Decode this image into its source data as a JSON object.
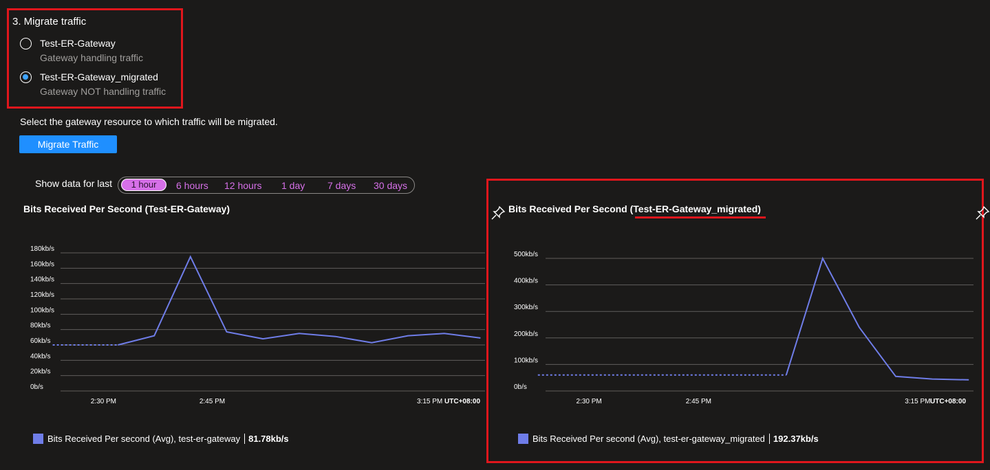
{
  "section": {
    "title": "3. Migrate traffic",
    "options": [
      {
        "label": "Test-ER-Gateway",
        "description": "Gateway handling traffic",
        "selected": false
      },
      {
        "label": "Test-ER-Gateway_migrated",
        "description": "Gateway NOT handling traffic",
        "selected": true
      }
    ],
    "helper_text": "Select the gateway resource to which traffic will be migrated.",
    "button_label": "Migrate Traffic"
  },
  "time_range": {
    "label": "Show data for last",
    "options": [
      "1 hour",
      "6 hours",
      "12 hours",
      "1 day",
      "7 days",
      "30 days"
    ],
    "selected": "1 hour"
  },
  "colors": {
    "accent": "#1f8fff",
    "series": "#6f7de8",
    "highlight": "#e0161c",
    "time_option": "#d670e8"
  },
  "icons": {
    "pin": "pin-icon"
  },
  "chart_data": [
    {
      "type": "line",
      "title": "Bits Received Per Second (Test-ER-Gateway)",
      "y_ticks": [
        "180kb/s",
        "160kb/s",
        "140kb/s",
        "120kb/s",
        "100kb/s",
        "80kb/s",
        "60kb/s",
        "40kb/s",
        "20kb/s",
        "0b/s"
      ],
      "ylim": [
        0,
        180
      ],
      "x_ticks": [
        "2:30 PM",
        "2:45 PM",
        "3:15 PM"
      ],
      "x_tick_minutes": [
        30,
        45,
        75
      ],
      "timezone": "UTC+08:00",
      "series": [
        {
          "name": "Bits Received Per second (Avg), test-er-gateway",
          "summary": "81.78kb/s",
          "dotted": [
            [
              23,
              60
            ],
            [
              32,
              60
            ]
          ],
          "solid": [
            [
              32,
              60
            ],
            [
              37,
              72
            ],
            [
              42,
              175
            ],
            [
              47,
              77
            ],
            [
              52,
              68
            ],
            [
              57,
              75
            ],
            [
              62,
              71
            ],
            [
              67,
              63
            ],
            [
              72,
              72
            ],
            [
              77,
              75
            ],
            [
              82,
              69
            ]
          ]
        }
      ]
    },
    {
      "type": "line",
      "title": "Bits Received Per Second (Test-ER-Gateway_migrated)",
      "y_ticks": [
        "500kb/s",
        "400kb/s",
        "300kb/s",
        "200kb/s",
        "100kb/s",
        "0b/s"
      ],
      "ylim": [
        0,
        500
      ],
      "x_ticks": [
        "2:30 PM",
        "2:45 PM",
        "3:15 PM"
      ],
      "x_tick_minutes": [
        30,
        45,
        75
      ],
      "timezone": "UTC+08:00",
      "series": [
        {
          "name": "Bits Received Per second (Avg), test-er-gateway_migrated",
          "summary": "192.37kb/s",
          "dotted": [
            [
              23,
              60
            ],
            [
              57,
              60
            ]
          ],
          "solid": [
            [
              57,
              60
            ],
            [
              62,
              500
            ],
            [
              67,
              240
            ],
            [
              72,
              55
            ],
            [
              77,
              45
            ],
            [
              82,
              42
            ]
          ]
        }
      ]
    }
  ]
}
